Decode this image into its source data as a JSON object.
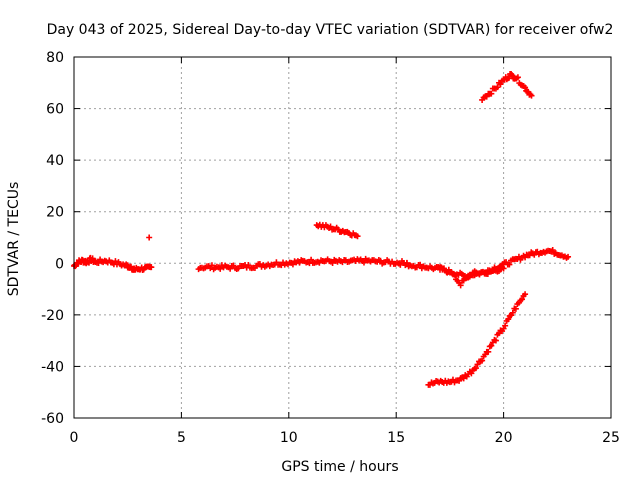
{
  "chart_data": {
    "type": "scatter",
    "title": "Day 043 of 2025, Sidereal Day-to-day VTEC variation (SDTVAR) for receiver ofw2",
    "xlabel": "GPS time / hours",
    "ylabel": "SDTVAR / TECUs",
    "xlim": [
      0,
      25
    ],
    "ylim": [
      -60,
      80
    ],
    "xticks": [
      0,
      5,
      10,
      15,
      20,
      25
    ],
    "yticks": [
      -60,
      -40,
      -20,
      0,
      20,
      40,
      60,
      80
    ],
    "xtick_labels": [
      "0",
      "5",
      "10",
      "15",
      "20",
      "25"
    ],
    "ytick_labels": [
      "-60",
      "-40",
      "-20",
      "0",
      "20",
      "40",
      "60",
      "80"
    ],
    "grid": true,
    "marker": "+",
    "color": "#ff0000",
    "series": [
      {
        "name": "arc-early-0",
        "x": [
          0.0,
          0.2,
          0.4,
          0.6,
          0.8,
          1.0
        ],
        "y": [
          -1,
          0.5,
          1,
          0.5,
          1.5,
          0.5
        ]
      },
      {
        "name": "arc-early-1",
        "x": [
          1.0,
          1.5,
          2.0,
          2.5,
          2.8
        ],
        "y": [
          0.5,
          1,
          0,
          -1,
          -2
        ]
      },
      {
        "name": "arc-early-2",
        "x": [
          2.5,
          2.8,
          3.1,
          3.4,
          3.6
        ],
        "y": [
          -1.5,
          -2.5,
          -2,
          -2,
          -1.5
        ]
      },
      {
        "name": "isolated-point",
        "x": [
          3.5
        ],
        "y": [
          10
        ]
      },
      {
        "name": "arc-day-0",
        "x": [
          5.8,
          6.5,
          7.5,
          8.5,
          9.5,
          10.5
        ],
        "y": [
          -1.5,
          -1.5,
          -1.5,
          -1,
          0,
          0.5
        ]
      },
      {
        "name": "arc-day-1",
        "x": [
          10.5,
          11.5,
          12.5,
          13.5,
          14.5,
          15.5
        ],
        "y": [
          0.5,
          1,
          0.5,
          1,
          0.5,
          0
        ]
      },
      {
        "name": "arc-high",
        "x": [
          11.3,
          11.8,
          12.3,
          12.8,
          13.2
        ],
        "y": [
          15,
          14,
          13,
          12,
          10.5
        ]
      },
      {
        "name": "arc-dip",
        "x": [
          15.5,
          16.5,
          17.5,
          18.0,
          18.5,
          19.5,
          20.0
        ],
        "y": [
          -0.5,
          -1.5,
          -3,
          -8,
          -4,
          -3,
          -2
        ]
      },
      {
        "name": "arc-dip-2",
        "x": [
          17.0,
          17.6,
          18.2,
          18.8,
          19.5
        ],
        "y": [
          -2,
          -3.5,
          -5,
          -4,
          -3
        ]
      },
      {
        "name": "arc-rise",
        "x": [
          19.5,
          20.5,
          21.0,
          21.5,
          22.0,
          22.5,
          23.0
        ],
        "y": [
          -2,
          1,
          3,
          4,
          5,
          4,
          2.5
        ]
      },
      {
        "name": "arc-low",
        "x": [
          16.5,
          17.0,
          17.5,
          18.0,
          18.5,
          19.0,
          19.5,
          20.0,
          20.5,
          21.0
        ],
        "y": [
          -47,
          -46,
          -46,
          -45,
          -42,
          -37,
          -31,
          -25,
          -18,
          -12
        ]
      },
      {
        "name": "arc-peak",
        "x": [
          19.0,
          19.5,
          20.0,
          20.3,
          20.6,
          21.0,
          21.3
        ],
        "y": [
          64,
          67,
          71,
          73,
          72,
          68,
          65
        ]
      }
    ]
  }
}
